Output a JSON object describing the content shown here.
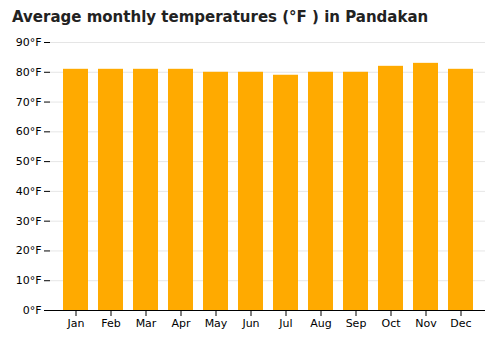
{
  "chart_data": {
    "type": "bar",
    "title": "Average monthly temperatures (°F ) in Pandakan",
    "categories": [
      "Jan",
      "Feb",
      "Mar",
      "Apr",
      "May",
      "Jun",
      "Jul",
      "Aug",
      "Sep",
      "Oct",
      "Nov",
      "Dec"
    ],
    "values": [
      81,
      81,
      81,
      81,
      80,
      80,
      79,
      80,
      80,
      82,
      83,
      81
    ],
    "color": "#FFAA00",
    "ylim": [
      0,
      90
    ],
    "yticks": [
      {
        "value": 0,
        "label": "0°F"
      },
      {
        "value": 10,
        "label": "10°F"
      },
      {
        "value": 20,
        "label": "20°F"
      },
      {
        "value": 30,
        "label": "30°F"
      },
      {
        "value": 40,
        "label": "40°F"
      },
      {
        "value": 50,
        "label": "50°F"
      },
      {
        "value": 60,
        "label": "60°F"
      },
      {
        "value": 70,
        "label": "70°F"
      },
      {
        "value": 80,
        "label": "80°F"
      },
      {
        "value": 90,
        "label": "90°F"
      }
    ],
    "grid": true
  }
}
